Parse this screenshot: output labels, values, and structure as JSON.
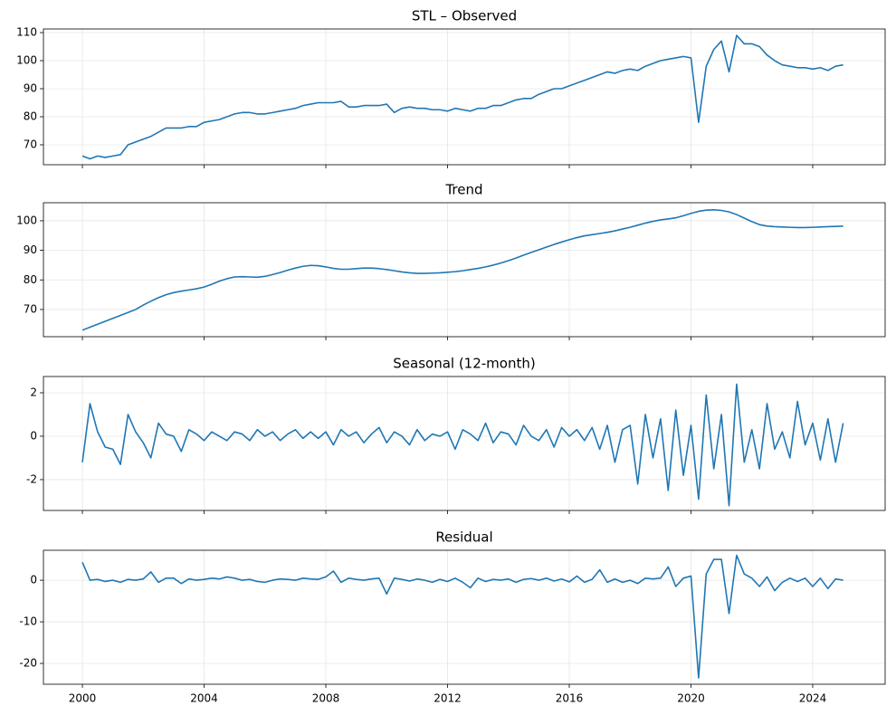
{
  "chart_data": [
    {
      "type": "line",
      "title": "STL – Observed",
      "color": "#1f77b4",
      "grid": true,
      "x": [
        2000,
        2000.25,
        2000.5,
        2000.75,
        2001,
        2001.25,
        2001.5,
        2001.75,
        2002,
        2002.25,
        2002.5,
        2002.75,
        2003,
        2003.25,
        2003.5,
        2003.75,
        2004,
        2004.25,
        2004.5,
        2004.75,
        2005,
        2005.25,
        2005.5,
        2005.75,
        2006,
        2006.25,
        2006.5,
        2006.75,
        2007,
        2007.25,
        2007.5,
        2007.75,
        2008,
        2008.25,
        2008.5,
        2008.75,
        2009,
        2009.25,
        2009.5,
        2009.75,
        2010,
        2010.25,
        2010.5,
        2010.75,
        2011,
        2011.25,
        2011.5,
        2011.75,
        2012,
        2012.25,
        2012.5,
        2012.75,
        2013,
        2013.25,
        2013.5,
        2013.75,
        2014,
        2014.25,
        2014.5,
        2014.75,
        2015,
        2015.25,
        2015.5,
        2015.75,
        2016,
        2016.25,
        2016.5,
        2016.75,
        2017,
        2017.25,
        2017.5,
        2017.75,
        2018,
        2018.25,
        2018.5,
        2018.75,
        2019,
        2019.25,
        2019.5,
        2019.75,
        2020,
        2020.25,
        2020.5,
        2020.75,
        2021,
        2021.25,
        2021.5,
        2021.75,
        2022,
        2022.25,
        2022.5,
        2022.75,
        2023,
        2023.25,
        2023.5,
        2023.75,
        2024,
        2024.25,
        2024.5,
        2024.75,
        2025
      ],
      "values": [
        66,
        65,
        66,
        65.5,
        66,
        66.5,
        70,
        71,
        72,
        73,
        74.5,
        76,
        76,
        76,
        76.5,
        76.5,
        78,
        78.5,
        79,
        80,
        81,
        81.5,
        81.5,
        81,
        81,
        81.5,
        82,
        82.5,
        83,
        84,
        84.5,
        85,
        85,
        85,
        85.5,
        83.5,
        83.5,
        84,
        84,
        84,
        84.5,
        81.5,
        83,
        83.5,
        83,
        83,
        82.5,
        82.5,
        82,
        83,
        82.5,
        82,
        83,
        83,
        84,
        84,
        85,
        86,
        86.5,
        86.5,
        88,
        89,
        90,
        90,
        91,
        92,
        93,
        94,
        95,
        96,
        95.5,
        96.5,
        97,
        96.5,
        98,
        99,
        100,
        100.5,
        101,
        101.5,
        101,
        78,
        98,
        104,
        107,
        96,
        109,
        106,
        106,
        105,
        102,
        100,
        98.5,
        98,
        97.5,
        97.5,
        97,
        97.5,
        96.5,
        98,
        98.5
      ],
      "xlim": [
        1998.72,
        2026.38
      ],
      "xticks": [
        2000,
        2004,
        2008,
        2012,
        2016,
        2020,
        2024
      ],
      "ylim": [
        62.9,
        111.3
      ],
      "yticks": [
        70,
        80,
        90,
        100,
        110
      ]
    },
    {
      "type": "line",
      "title": "Trend",
      "color": "#1f77b4",
      "grid": true,
      "x": [
        2000,
        2000.25,
        2000.5,
        2000.75,
        2001,
        2001.25,
        2001.5,
        2001.75,
        2002,
        2002.25,
        2002.5,
        2002.75,
        2003,
        2003.25,
        2003.5,
        2003.75,
        2004,
        2004.25,
        2004.5,
        2004.75,
        2005,
        2005.25,
        2005.5,
        2005.75,
        2006,
        2006.25,
        2006.5,
        2006.75,
        2007,
        2007.25,
        2007.5,
        2007.75,
        2008,
        2008.25,
        2008.5,
        2008.75,
        2009,
        2009.25,
        2009.5,
        2009.75,
        2010,
        2010.25,
        2010.5,
        2010.75,
        2011,
        2011.25,
        2011.5,
        2011.75,
        2012,
        2012.25,
        2012.5,
        2012.75,
        2013,
        2013.25,
        2013.5,
        2013.75,
        2014,
        2014.25,
        2014.5,
        2014.75,
        2015,
        2015.25,
        2015.5,
        2015.75,
        2016,
        2016.25,
        2016.5,
        2016.75,
        2017,
        2017.25,
        2017.5,
        2017.75,
        2018,
        2018.25,
        2018.5,
        2018.75,
        2019,
        2019.25,
        2019.5,
        2019.75,
        2020,
        2020.25,
        2020.5,
        2020.75,
        2021,
        2021.25,
        2021.5,
        2021.75,
        2022,
        2022.25,
        2022.5,
        2022.75,
        2023,
        2023.25,
        2023.5,
        2023.75,
        2024,
        2024.25,
        2024.5,
        2024.75,
        2025
      ],
      "values": [
        63,
        64,
        65,
        66,
        67,
        68,
        69,
        70,
        71.5,
        72.8,
        74,
        75,
        75.7,
        76.2,
        76.6,
        77,
        77.6,
        78.5,
        79.6,
        80.4,
        81,
        81.1,
        81,
        80.9,
        81.2,
        81.8,
        82.5,
        83.3,
        84,
        84.6,
        84.9,
        84.8,
        84.4,
        83.9,
        83.6,
        83.6,
        83.8,
        84,
        84,
        83.8,
        83.5,
        83.1,
        82.7,
        82.4,
        82.2,
        82.2,
        82.3,
        82.4,
        82.6,
        82.8,
        83.1,
        83.5,
        83.9,
        84.4,
        85,
        85.7,
        86.5,
        87.4,
        88.4,
        89.3,
        90.2,
        91.1,
        92,
        92.8,
        93.6,
        94.3,
        94.9,
        95.3,
        95.7,
        96.1,
        96.6,
        97.2,
        97.8,
        98.5,
        99.2,
        99.8,
        100.3,
        100.6,
        101,
        101.7,
        102.5,
        103.2,
        103.6,
        103.7,
        103.5,
        103,
        102.1,
        100.9,
        99.7,
        98.7,
        98.2,
        98,
        97.9,
        97.8,
        97.7,
        97.7,
        97.8,
        97.9,
        98,
        98.1,
        98.2
      ],
      "xlim": [
        1998.72,
        2026.38
      ],
      "xticks": [
        2000,
        2004,
        2008,
        2012,
        2016,
        2020,
        2024
      ],
      "ylim": [
        60.8,
        106.1
      ],
      "yticks": [
        70,
        80,
        90,
        100
      ]
    },
    {
      "type": "line",
      "title": "Seasonal (12-month)",
      "color": "#1f77b4",
      "grid": true,
      "x": [
        2000,
        2000.25,
        2000.5,
        2000.75,
        2001,
        2001.25,
        2001.5,
        2001.75,
        2002,
        2002.25,
        2002.5,
        2002.75,
        2003,
        2003.25,
        2003.5,
        2003.75,
        2004,
        2004.25,
        2004.5,
        2004.75,
        2005,
        2005.25,
        2005.5,
        2005.75,
        2006,
        2006.25,
        2006.5,
        2006.75,
        2007,
        2007.25,
        2007.5,
        2007.75,
        2008,
        2008.25,
        2008.5,
        2008.75,
        2009,
        2009.25,
        2009.5,
        2009.75,
        2010,
        2010.25,
        2010.5,
        2010.75,
        2011,
        2011.25,
        2011.5,
        2011.75,
        2012,
        2012.25,
        2012.5,
        2012.75,
        2013,
        2013.25,
        2013.5,
        2013.75,
        2014,
        2014.25,
        2014.5,
        2014.75,
        2015,
        2015.25,
        2015.5,
        2015.75,
        2016,
        2016.25,
        2016.5,
        2016.75,
        2017,
        2017.25,
        2017.5,
        2017.75,
        2018,
        2018.25,
        2018.5,
        2018.75,
        2019,
        2019.25,
        2019.5,
        2019.75,
        2020,
        2020.25,
        2020.5,
        2020.75,
        2021,
        2021.25,
        2021.5,
        2021.75,
        2022,
        2022.25,
        2022.5,
        2022.75,
        2023,
        2023.25,
        2023.5,
        2023.75,
        2024,
        2024.25,
        2024.5,
        2024.75,
        2025
      ],
      "values": [
        -1.2,
        1.5,
        0.2,
        -0.5,
        -0.6,
        -1.3,
        1.0,
        0.2,
        -0.3,
        -1.0,
        0.6,
        0.1,
        0.0,
        -0.7,
        0.3,
        0.1,
        -0.2,
        0.2,
        0.0,
        -0.2,
        0.2,
        0.1,
        -0.2,
        0.3,
        0.0,
        0.2,
        -0.2,
        0.1,
        0.3,
        -0.1,
        0.2,
        -0.1,
        0.2,
        -0.4,
        0.3,
        0.0,
        0.2,
        -0.3,
        0.1,
        0.4,
        -0.3,
        0.2,
        0.0,
        -0.4,
        0.3,
        -0.2,
        0.1,
        0.0,
        0.2,
        -0.6,
        0.3,
        0.1,
        -0.2,
        0.6,
        -0.3,
        0.2,
        0.1,
        -0.4,
        0.5,
        0.0,
        -0.2,
        0.3,
        -0.5,
        0.4,
        0.0,
        0.3,
        -0.2,
        0.4,
        -0.6,
        0.5,
        -1.2,
        0.3,
        0.5,
        -2.2,
        1.0,
        -1.0,
        0.8,
        -2.5,
        1.2,
        -1.8,
        0.5,
        -2.9,
        1.9,
        -1.5,
        1.0,
        -3.2,
        2.4,
        -1.2,
        0.3,
        -1.5,
        1.5,
        -0.6,
        0.2,
        -1.0,
        1.6,
        -0.4,
        0.6,
        -1.1,
        0.8,
        -1.2,
        0.6
      ],
      "xlim": [
        1998.72,
        2026.38
      ],
      "xticks": [
        2000,
        2004,
        2008,
        2012,
        2016,
        2020,
        2024
      ],
      "ylim": [
        -3.42,
        2.75
      ],
      "yticks": [
        -2,
        0,
        2
      ]
    },
    {
      "type": "line",
      "title": "Residual",
      "color": "#1f77b4",
      "grid": true,
      "x": [
        2000,
        2000.25,
        2000.5,
        2000.75,
        2001,
        2001.25,
        2001.5,
        2001.75,
        2002,
        2002.25,
        2002.5,
        2002.75,
        2003,
        2003.25,
        2003.5,
        2003.75,
        2004,
        2004.25,
        2004.5,
        2004.75,
        2005,
        2005.25,
        2005.5,
        2005.75,
        2006,
        2006.25,
        2006.5,
        2006.75,
        2007,
        2007.25,
        2007.5,
        2007.75,
        2008,
        2008.25,
        2008.5,
        2008.75,
        2009,
        2009.25,
        2009.5,
        2009.75,
        2010,
        2010.25,
        2010.5,
        2010.75,
        2011,
        2011.25,
        2011.5,
        2011.75,
        2012,
        2012.25,
        2012.5,
        2012.75,
        2013,
        2013.25,
        2013.5,
        2013.75,
        2014,
        2014.25,
        2014.5,
        2014.75,
        2015,
        2015.25,
        2015.5,
        2015.75,
        2016,
        2016.25,
        2016.5,
        2016.75,
        2017,
        2017.25,
        2017.5,
        2017.75,
        2018,
        2018.25,
        2018.5,
        2018.75,
        2019,
        2019.25,
        2019.5,
        2019.75,
        2020,
        2020.25,
        2020.5,
        2020.75,
        2021,
        2021.25,
        2021.5,
        2021.75,
        2022,
        2022.25,
        2022.5,
        2022.75,
        2023,
        2023.25,
        2023.5,
        2023.75,
        2024,
        2024.25,
        2024.5,
        2024.75,
        2025
      ],
      "values": [
        4.3,
        0,
        0.2,
        -0.3,
        0,
        -0.5,
        0.2,
        0,
        0.3,
        2,
        -0.5,
        0.5,
        0.5,
        -0.8,
        0.3,
        0,
        0.2,
        0.5,
        0.3,
        0.8,
        0.5,
        0,
        0.2,
        -0.3,
        -0.5,
        0,
        0.3,
        0.2,
        0,
        0.5,
        0.3,
        0.2,
        0.8,
        2.2,
        -0.5,
        0.5,
        0.2,
        0,
        0.3,
        0.5,
        -3.3,
        0.5,
        0.2,
        -0.2,
        0.3,
        0,
        -0.5,
        0.2,
        -0.3,
        0.5,
        -0.5,
        -1.8,
        0.5,
        -0.3,
        0.2,
        0,
        0.3,
        -0.5,
        0.2,
        0.4,
        0,
        0.5,
        -0.2,
        0.3,
        -0.4,
        1,
        -0.5,
        0.2,
        2.5,
        -0.5,
        0.3,
        -0.5,
        0,
        -0.8,
        0.5,
        0.3,
        0.5,
        3.2,
        -1.5,
        0.5,
        1,
        -23.5,
        1.5,
        5,
        5,
        -8,
        6,
        1.5,
        0.5,
        -1.5,
        0.8,
        -2.5,
        -0.5,
        0.5,
        -0.3,
        0.5,
        -1.5,
        0.5,
        -2,
        0.3,
        0
      ],
      "xlim": [
        1998.72,
        2026.38
      ],
      "xticks": [
        2000,
        2004,
        2008,
        2012,
        2016,
        2020,
        2024
      ],
      "ylim": [
        -25.0,
        7.2
      ],
      "yticks": [
        -20,
        -10,
        0
      ]
    }
  ]
}
